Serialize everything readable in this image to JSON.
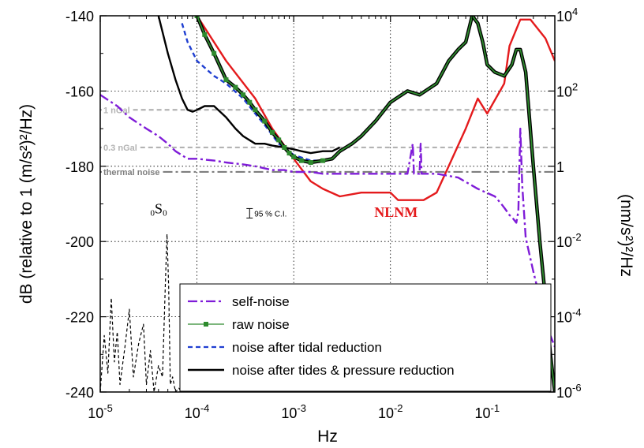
{
  "chart_data": {
    "type": "line",
    "x_scale": "log",
    "xlim": [
      1e-05,
      0.5
    ],
    "ylim": [
      -240,
      -140
    ],
    "y2_scale": "log",
    "y2lim": [
      1e-06,
      10000.0
    ],
    "xlabel": "Hz",
    "ylabel": "dB (relative to 1 (m/s²)²/Hz)",
    "y2label": "(nm/s²)²/Hz",
    "x_ticks": [
      {
        "v": 1e-05,
        "base": "10",
        "exp": "-5"
      },
      {
        "v": 0.0001,
        "base": "10",
        "exp": "-4"
      },
      {
        "v": 0.001,
        "base": "10",
        "exp": "-3"
      },
      {
        "v": 0.01,
        "base": "10",
        "exp": "-2"
      },
      {
        "v": 0.1,
        "base": "10",
        "exp": "-1"
      }
    ],
    "y_ticks": [
      "-140",
      "-160",
      "-180",
      "-200",
      "-220",
      "-240"
    ],
    "y2_ticks": [
      {
        "db": -140,
        "base": "10",
        "exp": "4"
      },
      {
        "db": -160,
        "base": "10",
        "exp": "2"
      },
      {
        "db": -180,
        "base": "1",
        "exp": ""
      },
      {
        "db": -200,
        "base": "10",
        "exp": "-2"
      },
      {
        "db": -220,
        "base": "10",
        "exp": "-4"
      },
      {
        "db": -240,
        "base": "10",
        "exp": "-6"
      }
    ],
    "grid": true,
    "legend_position": "bottom-right",
    "reference_lines": [
      {
        "label": "1 nGal",
        "y": -165,
        "color": "#b3b3b3",
        "dash": "dash"
      },
      {
        "label": "0.3 nGal",
        "y": -175,
        "color": "#b3b3b3",
        "dash": "dash"
      },
      {
        "label": "thermal noise",
        "y": -181.5,
        "color": "#7f7f7f",
        "dash": "dashdot"
      }
    ],
    "annotations": {
      "mode_prefix": "0",
      "mode_letter": "S",
      "mode_suffix": "0",
      "ci_label": "95 % C.I.",
      "nlnm_label": "NLNM"
    },
    "series": [
      {
        "name": "self-noise",
        "color": "#7f1cd8",
        "style": "dashdot",
        "marker": "none",
        "x": [
          1e-05,
          1.5e-05,
          2e-05,
          3e-05,
          4e-05,
          5e-05,
          6e-05,
          8e-05,
          0.0001,
          0.00015,
          0.0002,
          0.0003,
          0.0004,
          0.0006,
          0.0008,
          0.001,
          0.0015,
          0.002,
          0.003,
          0.005,
          0.008,
          0.01,
          0.015,
          0.017,
          0.0175,
          0.018,
          0.02,
          0.0205,
          0.021,
          0.03,
          0.05,
          0.08,
          0.12,
          0.14,
          0.15,
          0.16,
          0.17,
          0.18,
          0.2,
          0.21,
          0.22,
          0.23,
          0.25,
          0.3,
          0.35,
          0.4,
          0.45,
          0.5
        ],
        "y": [
          -161,
          -164,
          -167,
          -170,
          -172,
          -174,
          -176,
          -178,
          -178,
          -178.5,
          -179,
          -179.5,
          -180,
          -181,
          -181,
          -181.5,
          -181.5,
          -182,
          -182,
          -182,
          -182,
          -182,
          -182,
          -174,
          -182,
          -182,
          -182,
          -174,
          -182,
          -182,
          -183,
          -186,
          -188,
          -190,
          -191,
          -192,
          -193,
          -193.5,
          -195,
          -192,
          -170,
          -185,
          -199,
          -208,
          -215,
          -220,
          -225,
          -228
        ]
      },
      {
        "name": "raw noise",
        "color": "#2e8b2e",
        "style": "solid",
        "marker": "square",
        "x": [
          0.0001,
          0.00012,
          0.00015,
          0.0002,
          0.00025,
          0.0003,
          0.00035,
          0.0004,
          0.0005,
          0.0006,
          0.0007,
          0.0008,
          0.0009,
          0.001,
          0.0012,
          0.0015,
          0.002,
          0.0025,
          0.003,
          0.004,
          0.005,
          0.007,
          0.01,
          0.015,
          0.02,
          0.03,
          0.04,
          0.05,
          0.06,
          0.07,
          0.08,
          0.09,
          0.1,
          0.12,
          0.15,
          0.18,
          0.2,
          0.22,
          0.25,
          0.3,
          0.35,
          0.4,
          0.45,
          0.5
        ],
        "y": [
          -140,
          -145,
          -150,
          -157,
          -159,
          -161,
          -163,
          -165,
          -168,
          -171,
          -173,
          -175,
          -176.5,
          -177.5,
          -178.5,
          -179,
          -178.5,
          -178,
          -176,
          -174,
          -172,
          -168,
          -163,
          -160,
          -161,
          -158,
          -152,
          -149,
          -147,
          -140,
          -142,
          -147,
          -153,
          -155,
          -156,
          -153,
          -149,
          -149,
          -155,
          -180,
          -200,
          -215,
          -230,
          -240
        ]
      },
      {
        "name": "noise after tidal reduction",
        "color": "#1f3fd1",
        "style": "dash",
        "marker": "none",
        "x": [
          7e-05,
          8e-05,
          0.0001,
          0.00015,
          0.0002,
          0.0003,
          0.0004,
          0.0005,
          0.0007,
          0.001,
          0.0015,
          0.002
        ],
        "y": [
          -142,
          -147,
          -152,
          -156,
          -158,
          -162,
          -166,
          -169,
          -174,
          -177,
          -178.5,
          -178.5
        ]
      },
      {
        "name": "noise after tides & pressure reduction",
        "color": "#000000",
        "style": "solid",
        "marker": "none",
        "x": [
          4e-05,
          5e-05,
          6e-05,
          7e-05,
          8e-05,
          9e-05,
          0.0001,
          0.00012,
          0.00015,
          0.0002,
          0.00025,
          0.0003,
          0.0004,
          0.0005,
          0.0006,
          0.0008,
          0.001,
          0.0012,
          0.0015,
          0.002,
          0.0025,
          0.003
        ],
        "y": [
          -140,
          -150,
          -157,
          -162,
          -165,
          -165.5,
          -165,
          -164,
          -164,
          -167,
          -170,
          -172,
          -174,
          -174,
          -174.5,
          -175,
          -175.5,
          -176,
          -176.5,
          -176,
          -176,
          -175
        ]
      },
      {
        "name": "NLNM",
        "color": "#e41a1c",
        "style": "solid",
        "marker": "none",
        "x": [
          0.0001,
          0.0002,
          0.0004,
          0.0006,
          0.001,
          0.0015,
          0.002,
          0.003,
          0.005,
          0.01,
          0.012,
          0.022,
          0.03,
          0.04,
          0.06,
          0.08,
          0.1,
          0.15,
          0.17,
          0.22,
          0.28,
          0.4,
          0.5
        ],
        "y": [
          -140,
          -152,
          -162,
          -170,
          -178,
          -184,
          -186,
          -188,
          -187,
          -187,
          -189,
          -189,
          -187,
          -180,
          -170,
          -162,
          -166,
          -158,
          -148,
          -141,
          -141,
          -146,
          -152
        ]
      },
      {
        "name": "0S0 tail",
        "color": "#000000",
        "style": "shortdash",
        "marker": "none",
        "x": [
          1e-05,
          1.1e-05,
          1.2e-05,
          1.3e-05,
          1.4e-05,
          1.5e-05,
          1.6e-05,
          1.8e-05,
          2e-05,
          2.2e-05,
          2.5e-05,
          2.8e-05,
          3e-05,
          3.3e-05,
          3.6e-05,
          4e-05,
          4.4e-05,
          4.7e-05,
          4.9e-05,
          5.1e-05,
          5.3e-05,
          5.6e-05,
          6e-05,
          6.5e-05,
          7e-05,
          8e-05
        ],
        "y": [
          -240,
          -225,
          -235,
          -215,
          -232,
          -224,
          -238,
          -228,
          -218,
          -236,
          -227,
          -222,
          -238,
          -229,
          -240,
          -233,
          -236,
          -212,
          -198,
          -212,
          -238,
          -236,
          -240,
          -239,
          -240,
          -240
        ]
      }
    ],
    "legend_entries": [
      "self-noise",
      "raw noise",
      "noise after tidal reduction",
      "noise after tides & pressure reduction"
    ]
  }
}
